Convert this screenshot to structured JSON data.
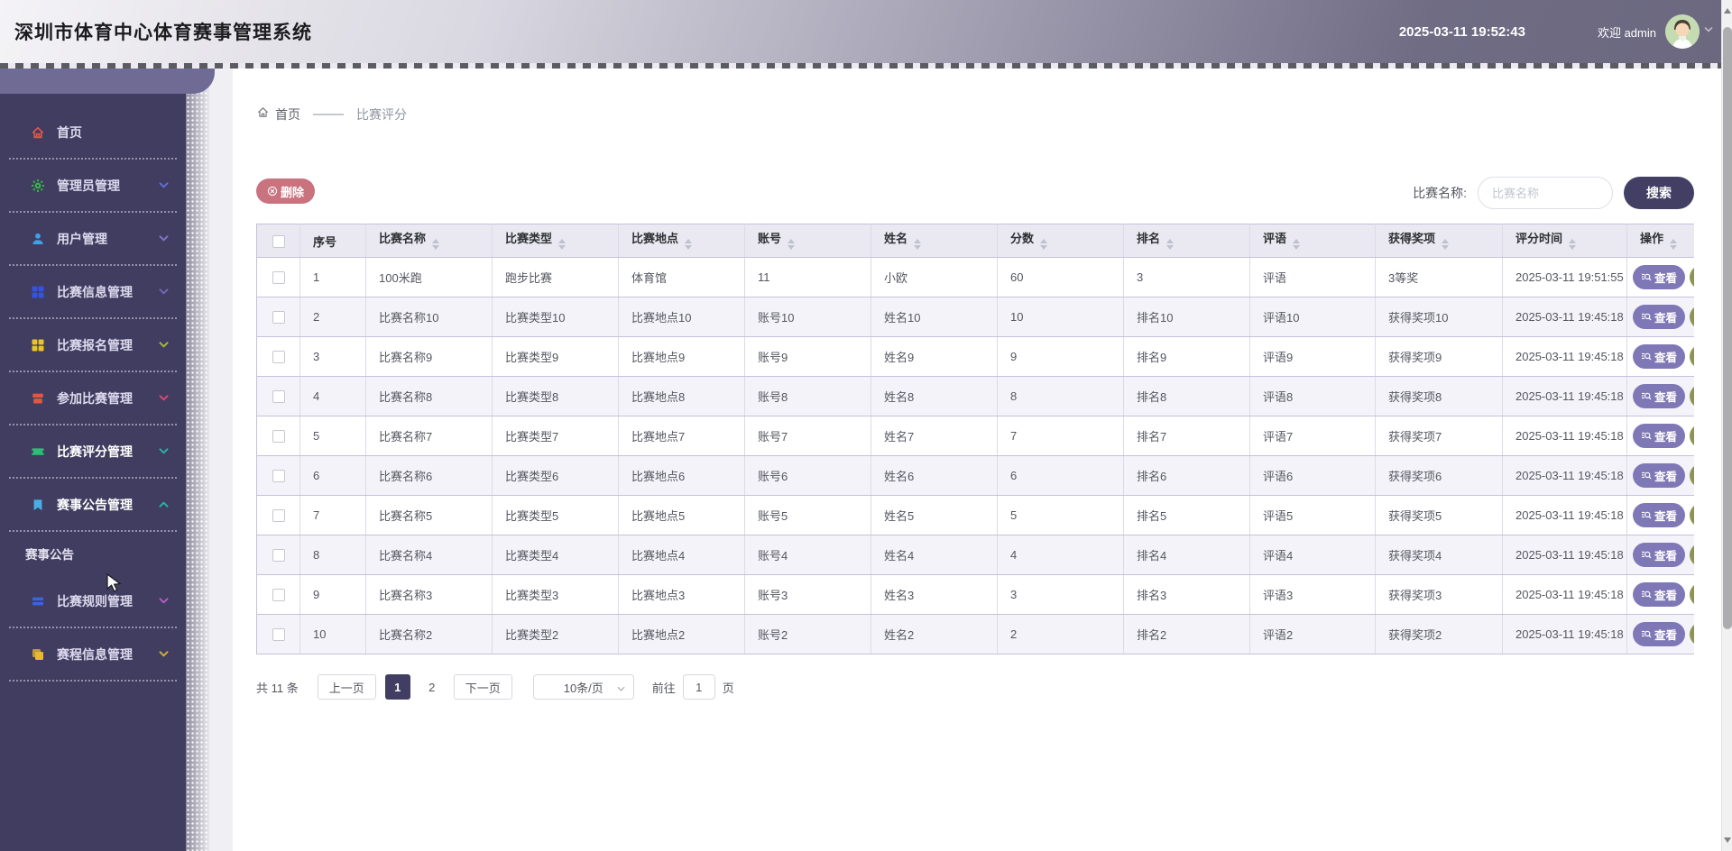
{
  "header": {
    "title": "深圳市体育中心体育赛事管理系统",
    "datetime": "2025-03-11 19:52:43",
    "welcome": "欢迎 admin"
  },
  "sidebar": {
    "items": [
      {
        "label": "首页",
        "icon": "home-icon",
        "icon_color": "#e0574b",
        "chevron": "none",
        "chevron_color": "",
        "active": false
      },
      {
        "label": "管理员管理",
        "icon": "gear-icon",
        "icon_color": "#36b44a",
        "chevron": "down",
        "chevron_color": "#5f6fd8",
        "active": false
      },
      {
        "label": "用户管理",
        "icon": "user-icon",
        "icon_color": "#41a0e8",
        "chevron": "down",
        "chevron_color": "#7d76cc",
        "active": false
      },
      {
        "label": "比赛信息管理",
        "icon": "grid-icon",
        "icon_color": "#3353e2",
        "chevron": "down",
        "chevron_color": "#6f68b8",
        "active": false
      },
      {
        "label": "比赛报名管理",
        "icon": "grid-icon",
        "icon_color": "#e9c427",
        "chevron": "down",
        "chevron_color": "#a8b93f",
        "active": false
      },
      {
        "label": "参加比赛管理",
        "icon": "box-icon",
        "icon_color": "#e2573f",
        "chevron": "down",
        "chevron_color": "#d84a6e",
        "active": false
      },
      {
        "label": "比赛评分管理",
        "icon": "ticket-icon",
        "icon_color": "#2dbd74",
        "chevron": "down",
        "chevron_color": "#29b3a2",
        "active": true
      },
      {
        "label": "赛事公告管理",
        "icon": "flag-icon",
        "icon_color": "#49aee4",
        "chevron": "up",
        "chevron_color": "#29b3a2",
        "active": true,
        "children": [
          {
            "label": "赛事公告"
          }
        ]
      },
      {
        "label": "比赛规则管理",
        "icon": "bars-icon",
        "icon_color": "#3567e0",
        "chevron": "down",
        "chevron_color": "#b55cc4",
        "active": false
      },
      {
        "label": "赛程信息管理",
        "icon": "book-icon",
        "icon_color": "#e9b92e",
        "chevron": "down",
        "chevron_color": "#cfae3c",
        "active": false
      }
    ]
  },
  "breadcrumb": {
    "home": "首页",
    "current": "比赛评分"
  },
  "toolbar": {
    "delete_label": "删除",
    "search_label": "比赛名称:",
    "search_placeholder": "比赛名称",
    "search_button": "搜索"
  },
  "table": {
    "view_label": "查看",
    "columns": [
      {
        "label": "序号",
        "sortable": false
      },
      {
        "label": "比赛名称",
        "sortable": true
      },
      {
        "label": "比赛类型",
        "sortable": true
      },
      {
        "label": "比赛地点",
        "sortable": true
      },
      {
        "label": "账号",
        "sortable": true
      },
      {
        "label": "姓名",
        "sortable": true
      },
      {
        "label": "分数",
        "sortable": true
      },
      {
        "label": "排名",
        "sortable": true
      },
      {
        "label": "评语",
        "sortable": true
      },
      {
        "label": "获得奖项",
        "sortable": true
      },
      {
        "label": "评分时间",
        "sortable": true
      },
      {
        "label": "操作",
        "sortable": true
      }
    ],
    "rows": [
      [
        "1",
        "100米跑",
        "跑步比赛",
        "体育馆",
        "11",
        "小欧",
        "60",
        "3",
        "评语",
        "3等奖",
        "2025-03-11 19:51:55"
      ],
      [
        "2",
        "比赛名称10",
        "比赛类型10",
        "比赛地点10",
        "账号10",
        "姓名10",
        "10",
        "排名10",
        "评语10",
        "获得奖项10",
        "2025-03-11 19:45:18"
      ],
      [
        "3",
        "比赛名称9",
        "比赛类型9",
        "比赛地点9",
        "账号9",
        "姓名9",
        "9",
        "排名9",
        "评语9",
        "获得奖项9",
        "2025-03-11 19:45:18"
      ],
      [
        "4",
        "比赛名称8",
        "比赛类型8",
        "比赛地点8",
        "账号8",
        "姓名8",
        "8",
        "排名8",
        "评语8",
        "获得奖项8",
        "2025-03-11 19:45:18"
      ],
      [
        "5",
        "比赛名称7",
        "比赛类型7",
        "比赛地点7",
        "账号7",
        "姓名7",
        "7",
        "排名7",
        "评语7",
        "获得奖项7",
        "2025-03-11 19:45:18"
      ],
      [
        "6",
        "比赛名称6",
        "比赛类型6",
        "比赛地点6",
        "账号6",
        "姓名6",
        "6",
        "排名6",
        "评语6",
        "获得奖项6",
        "2025-03-11 19:45:18"
      ],
      [
        "7",
        "比赛名称5",
        "比赛类型5",
        "比赛地点5",
        "账号5",
        "姓名5",
        "5",
        "排名5",
        "评语5",
        "获得奖项5",
        "2025-03-11 19:45:18"
      ],
      [
        "8",
        "比赛名称4",
        "比赛类型4",
        "比赛地点4",
        "账号4",
        "姓名4",
        "4",
        "排名4",
        "评语4",
        "获得奖项4",
        "2025-03-11 19:45:18"
      ],
      [
        "9",
        "比赛名称3",
        "比赛类型3",
        "比赛地点3",
        "账号3",
        "姓名3",
        "3",
        "排名3",
        "评语3",
        "获得奖项3",
        "2025-03-11 19:45:18"
      ],
      [
        "10",
        "比赛名称2",
        "比赛类型2",
        "比赛地点2",
        "账号2",
        "姓名2",
        "2",
        "排名2",
        "评语2",
        "获得奖项2",
        "2025-03-11 19:45:18"
      ]
    ]
  },
  "pagination": {
    "total": "共 11 条",
    "prev": "上一页",
    "next": "下一页",
    "pages": [
      {
        "label": "1",
        "active": true
      },
      {
        "label": "2",
        "active": false
      }
    ],
    "page_size": "10条/页",
    "goto_label": "前往",
    "goto_value": "1",
    "unit": "页"
  },
  "colors": {
    "sidebar_bg": "#413d60",
    "accent_dark_purple": "#413d63",
    "delete_button": "#c9737f",
    "view_button": "#7f78b6",
    "table_header_bg": "#eae9f2"
  }
}
